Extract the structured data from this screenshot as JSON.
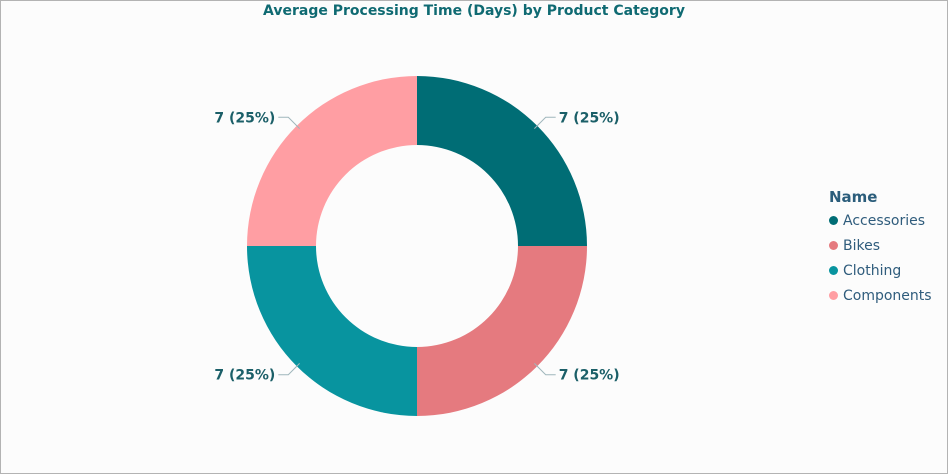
{
  "chart_data": {
    "type": "pie",
    "title": "Average Processing Time (Days) by Product Category",
    "legend_title": "Name",
    "legend_position": "right",
    "categories": [
      "Accessories",
      "Bikes",
      "Clothing",
      "Components"
    ],
    "values": [
      7,
      7,
      7,
      7
    ],
    "labels": [
      "7 (25%)",
      "7 (25%)",
      "7 (25%)",
      "7 (25%)"
    ],
    "colors": [
      "#006d75",
      "#e57a7f",
      "#08949f",
      "#ff9ea3"
    ]
  }
}
